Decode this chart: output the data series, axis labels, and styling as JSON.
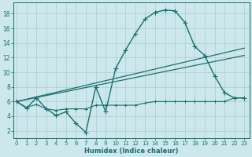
{
  "xlabel": "Humidex (Indice chaleur)",
  "x_ticks": [
    0,
    1,
    2,
    3,
    4,
    5,
    6,
    7,
    8,
    9,
    10,
    11,
    12,
    13,
    14,
    15,
    16,
    17,
    18,
    19,
    20,
    21,
    22,
    23
  ],
  "y_ticks": [
    2,
    4,
    6,
    8,
    10,
    12,
    14,
    16,
    18
  ],
  "xlim": [
    -0.3,
    23.5
  ],
  "ylim": [
    1.0,
    19.5
  ],
  "bg_color": "#cce8ec",
  "grid_color": "#aacccc",
  "line_color": "#1a6e6e",
  "line1_x": [
    0,
    1,
    2,
    3,
    4,
    5,
    6,
    7,
    8,
    9,
    10,
    11,
    12,
    13,
    14,
    15,
    16,
    17,
    18,
    19,
    20,
    21,
    22,
    23
  ],
  "line1_y": [
    6.0,
    5.1,
    6.5,
    5.0,
    4.1,
    4.6,
    3.0,
    1.8,
    8.0,
    4.6,
    10.5,
    13.0,
    15.3,
    17.3,
    18.2,
    18.5,
    18.4,
    16.8,
    13.5,
    12.3,
    9.5,
    7.2,
    6.5,
    6.5
  ],
  "line2_x": [
    0,
    1,
    2,
    3,
    4,
    5,
    6,
    7,
    8,
    9,
    10,
    11,
    12,
    13,
    14,
    15,
    16,
    17,
    18,
    19,
    20,
    21,
    22,
    23
  ],
  "line2_y": [
    6.0,
    5.2,
    5.6,
    5.0,
    4.8,
    5.0,
    5.0,
    5.0,
    5.5,
    5.5,
    5.5,
    5.5,
    5.5,
    5.8,
    6.0,
    6.0,
    6.0,
    6.0,
    6.0,
    6.0,
    6.0,
    6.0,
    6.5,
    6.5
  ],
  "line3_x": [
    0,
    23
  ],
  "line3_y": [
    6.0,
    13.3
  ],
  "line4_x": [
    0,
    23
  ],
  "line4_y": [
    6.0,
    12.3
  ]
}
